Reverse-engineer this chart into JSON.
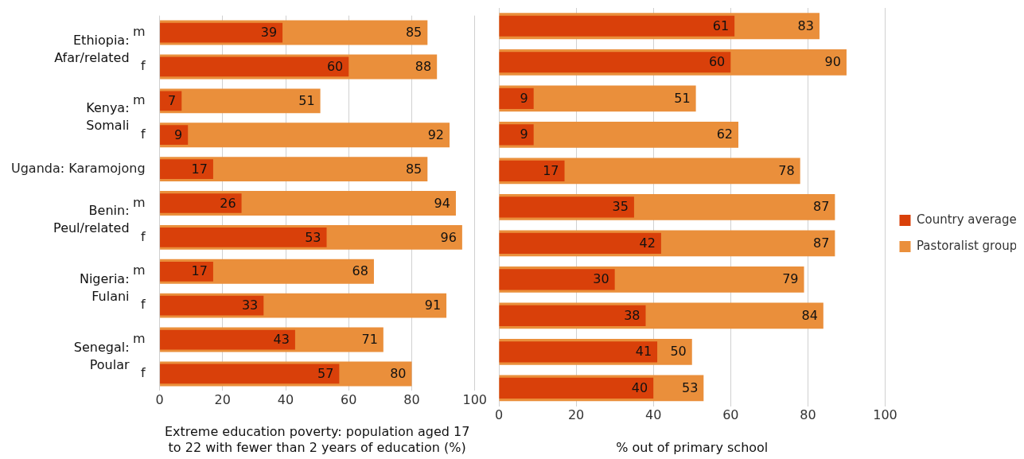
{
  "chart_data": [
    {
      "type": "bar",
      "orientation": "horizontal",
      "categories": [
        "m",
        "f",
        "m",
        "f",
        "Uganda: Karamojong",
        "m",
        "f",
        "m",
        "f",
        "m",
        "f"
      ],
      "series": [
        {
          "color": "#d9400a",
          "values": [
            39,
            60,
            7,
            9,
            17,
            26,
            53,
            17,
            33,
            43,
            57
          ]
        },
        {
          "color": "#ea8f3b",
          "values": [
            85,
            88,
            51,
            92,
            85,
            94,
            96,
            68,
            91,
            71,
            80
          ]
        }
      ],
      "xlim": [
        0,
        100
      ],
      "xticks": [
        0,
        20,
        40,
        60,
        80,
        100
      ],
      "grid": "x",
      "data_labels": true,
      "legend": false,
      "xlabel": "Extreme education poverty: population aged 17 to 22 with fewer than 2 years of education (%)",
      "annotations": [
        "Ethiopia: Afar/related",
        "Kenya: Somali",
        "Benin: Peul/related",
        "Nigeria: Fulani",
        "Senegal: Poular"
      ]
    },
    {
      "type": "bar",
      "orientation": "horizontal",
      "categories": [
        "m",
        "f",
        "m",
        "f",
        "Uganda: Karamojong",
        "m",
        "f",
        "m",
        "f",
        "m",
        "f"
      ],
      "series": [
        {
          "name": "Country average",
          "color": "#d9400a",
          "values": [
            61,
            60,
            9,
            9,
            17,
            35,
            42,
            30,
            38,
            41,
            40
          ]
        },
        {
          "name": "Pastoralist group",
          "color": "#ea8f3b",
          "values": [
            83,
            90,
            51,
            62,
            78,
            87,
            87,
            79,
            84,
            50,
            53
          ]
        }
      ],
      "xlim": [
        0,
        100
      ],
      "xticks": [
        0,
        20,
        40,
        60,
        80,
        100
      ],
      "grid": "x",
      "data_labels": true,
      "legend": "right",
      "tick_labels": "x",
      "xlabel": "% out of primary school"
    }
  ]
}
